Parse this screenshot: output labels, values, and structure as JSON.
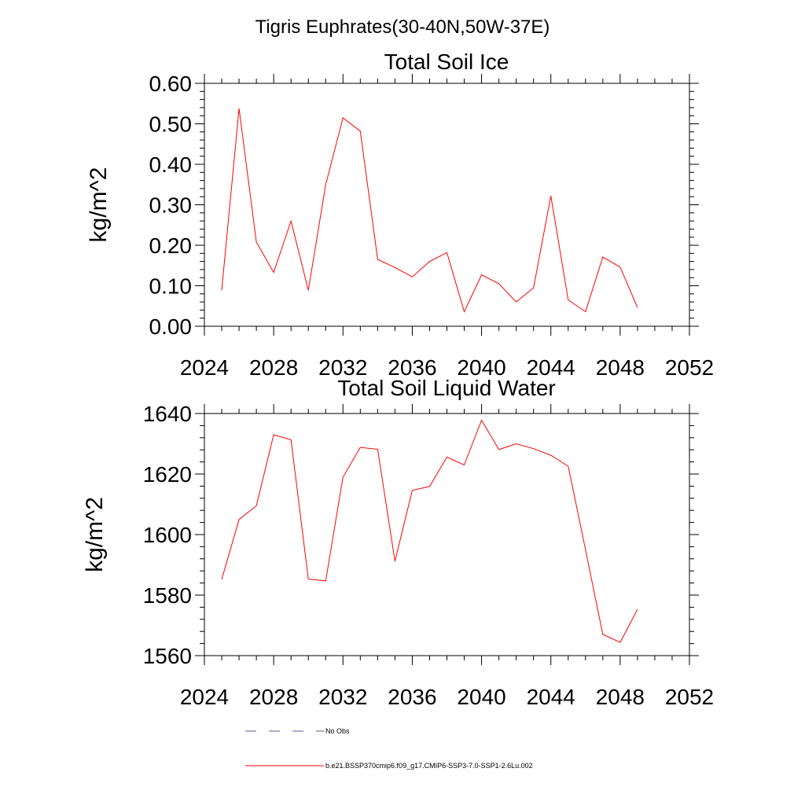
{
  "figure": {
    "suptitle": "Tigris Euphrates(30-40N,50W-37E)"
  },
  "legend": [
    {
      "label": "No Obs",
      "style": "dashed",
      "color": "#5a5a9a"
    },
    {
      "label": "b.e21.BSSP370cmip6.f09_g17.CMIP6-SSP3-7.0-SSP1-2.6Lu.002",
      "style": "solid",
      "color": "#ff0000"
    }
  ],
  "chart_data": [
    {
      "type": "line",
      "title": "Total Soil Ice",
      "xlabel": "",
      "ylabel": "kg/m^2",
      "xlim": [
        2024,
        2052
      ],
      "ylim": [
        0,
        0.6
      ],
      "xticks": [
        2024,
        2028,
        2032,
        2036,
        2040,
        2044,
        2048,
        2052
      ],
      "yticks": [
        0,
        0.1,
        0.2,
        0.3,
        0.4,
        0.5,
        0.6
      ],
      "ytick_labels": [
        "0.00",
        "0.10",
        "0.20",
        "0.30",
        "0.40",
        "0.50",
        "0.60"
      ],
      "grid": false,
      "series": [
        {
          "name": "b.e21.BSSP370cmip6.f09_g17.CMIP6-SSP3-7.0-SSP1-2.6Lu.002",
          "color": "#ff0000",
          "x": [
            2025,
            2026,
            2027,
            2028,
            2029,
            2030,
            2031,
            2032,
            2033,
            2034,
            2035,
            2036,
            2037,
            2038,
            2039,
            2040,
            2041,
            2042,
            2043,
            2044,
            2045,
            2046,
            2047,
            2048,
            2049
          ],
          "values": [
            0.089,
            0.538,
            0.208,
            0.133,
            0.26,
            0.089,
            0.35,
            0.515,
            0.482,
            0.165,
            0.145,
            0.122,
            0.16,
            0.182,
            0.036,
            0.127,
            0.105,
            0.06,
            0.095,
            0.322,
            0.065,
            0.036,
            0.171,
            0.146,
            0.046
          ]
        }
      ]
    },
    {
      "type": "line",
      "title": "Total Soil Liquid Water",
      "xlabel": "",
      "ylabel": "kg/m^2",
      "xlim": [
        2024,
        2052
      ],
      "ylim": [
        1560,
        1640
      ],
      "xticks": [
        2024,
        2028,
        2032,
        2036,
        2040,
        2044,
        2048,
        2052
      ],
      "yticks": [
        1560,
        1580,
        1600,
        1620,
        1640
      ],
      "ytick_labels": [
        "1560",
        "1580",
        "1600",
        "1620",
        "1640"
      ],
      "grid": false,
      "series": [
        {
          "name": "b.e21.BSSP370cmip6.f09_g17.CMIP6-SSP3-7.0-SSP1-2.6Lu.002",
          "color": "#ff0000",
          "x": [
            2025,
            2026,
            2027,
            2028,
            2029,
            2030,
            2031,
            2032,
            2033,
            2034,
            2035,
            2036,
            2037,
            2038,
            2039,
            2040,
            2041,
            2042,
            2043,
            2044,
            2045,
            2046,
            2047,
            2048,
            2049
          ],
          "values": [
            1585.2,
            1605.0,
            1609.5,
            1633.0,
            1631.3,
            1585.3,
            1584.7,
            1619.0,
            1628.8,
            1628.2,
            1591.2,
            1614.6,
            1615.9,
            1625.6,
            1623.0,
            1637.8,
            1628.1,
            1630.0,
            1628.4,
            1626.2,
            1622.6,
            1595.0,
            1567.0,
            1564.4,
            1575.3
          ]
        }
      ]
    }
  ]
}
